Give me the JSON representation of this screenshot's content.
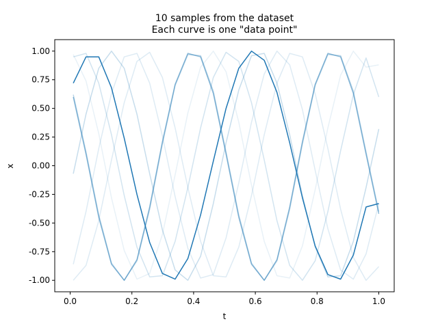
{
  "chart_data": {
    "type": "line",
    "title": "10 samples from the dataset",
    "subtitle": "Each curve is one \"data point\"",
    "xlabel": "t",
    "ylabel": "x",
    "xlim": [
      -0.05,
      1.05
    ],
    "ylim": [
      -1.1,
      1.1
    ],
    "xticks": [
      "0.0",
      "0.2",
      "0.4",
      "0.6",
      "0.8",
      "1.0"
    ],
    "yticks": [
      "-1.00",
      "-0.75",
      "-0.50",
      "-0.25",
      "0.00",
      "0.25",
      "0.50",
      "0.75",
      "1.00"
    ],
    "grid": false,
    "legend": "none",
    "color": "#1f77b4",
    "series": [
      {
        "values": [
          0.72,
          0.95,
          0.95,
          0.68,
          0.24,
          -0.25,
          -0.67,
          -0.94,
          -0.99,
          -0.81,
          -0.43,
          0.04,
          0.5,
          0.85,
          1.0,
          0.92,
          0.64,
          0.2,
          -0.28,
          -0.7,
          -0.95,
          -0.99,
          -0.78,
          -0.36,
          -0.33
        ],
        "opacity": 1.0
      },
      {
        "values": [
          0.6,
          0.1,
          -0.45,
          -0.86,
          -1.0,
          -0.82,
          -0.36,
          0.21,
          0.71,
          0.98,
          0.95,
          0.63,
          0.1,
          -0.45,
          -0.86,
          -1.0,
          -0.82,
          -0.36,
          0.21,
          0.71,
          0.98,
          0.95,
          0.63,
          0.1,
          -0.42
        ],
        "opacity": 0.5
      },
      {
        "values": [
          0.62,
          0.12,
          -0.43,
          -0.85,
          -1.0,
          -0.83,
          -0.38,
          0.19,
          0.7,
          0.97,
          0.96,
          0.65,
          0.12,
          -0.43,
          -0.85,
          -1.0,
          -0.83,
          -0.38,
          0.19,
          0.7,
          0.97,
          0.96,
          0.65,
          0.12,
          -0.4
        ],
        "opacity": 0.3
      },
      {
        "values": [
          -0.07,
          0.45,
          0.85,
          1.0,
          0.85,
          0.45,
          -0.07,
          -0.56,
          -0.91,
          -1.0,
          -0.79,
          -0.33,
          0.2,
          0.66,
          0.96,
          0.98,
          0.72,
          0.27,
          -0.26,
          -0.71,
          -0.97,
          -0.96,
          -0.66,
          -0.19,
          0.32
        ],
        "opacity": 0.25
      },
      {
        "values": [
          0.95,
          0.98,
          0.72,
          0.27,
          -0.26,
          -0.71,
          -0.97,
          -0.96,
          -0.66,
          -0.19,
          0.33,
          0.77,
          0.99,
          0.91,
          0.55,
          0.05,
          -0.48,
          -0.87,
          -1.0,
          -0.83,
          -0.4,
          0.13,
          0.62,
          0.94,
          0.6
        ],
        "opacity": 0.2
      },
      {
        "values": [
          -1.0,
          -0.87,
          -0.48,
          0.05,
          0.55,
          0.91,
          0.99,
          0.77,
          0.33,
          -0.19,
          -0.66,
          -0.96,
          -0.97,
          -0.71,
          -0.26,
          0.27,
          0.72,
          0.98,
          0.95,
          0.63,
          0.15,
          -0.38,
          -0.8,
          -1.0,
          -0.88
        ],
        "opacity": 0.15
      },
      {
        "values": [
          -0.86,
          -0.4,
          0.15,
          0.63,
          0.95,
          0.98,
          0.72,
          0.26,
          -0.27,
          -0.72,
          -0.98,
          -0.95,
          -0.63,
          -0.15,
          0.38,
          0.8,
          1.0,
          0.88,
          0.49,
          -0.04,
          -0.55,
          -0.91,
          -0.99,
          -0.77,
          -0.33
        ],
        "opacity": 0.15
      },
      {
        "values": [
          0.97,
          0.74,
          0.28,
          -0.28,
          -0.74,
          -0.99,
          -0.94,
          -0.6,
          -0.08,
          0.46,
          0.86,
          1.0,
          0.82,
          0.38,
          -0.17,
          -0.66,
          -0.96,
          -0.98,
          -0.7,
          -0.21,
          0.33,
          0.79,
          1.0,
          0.86,
          0.88
        ],
        "opacity": 0.1
      }
    ]
  }
}
